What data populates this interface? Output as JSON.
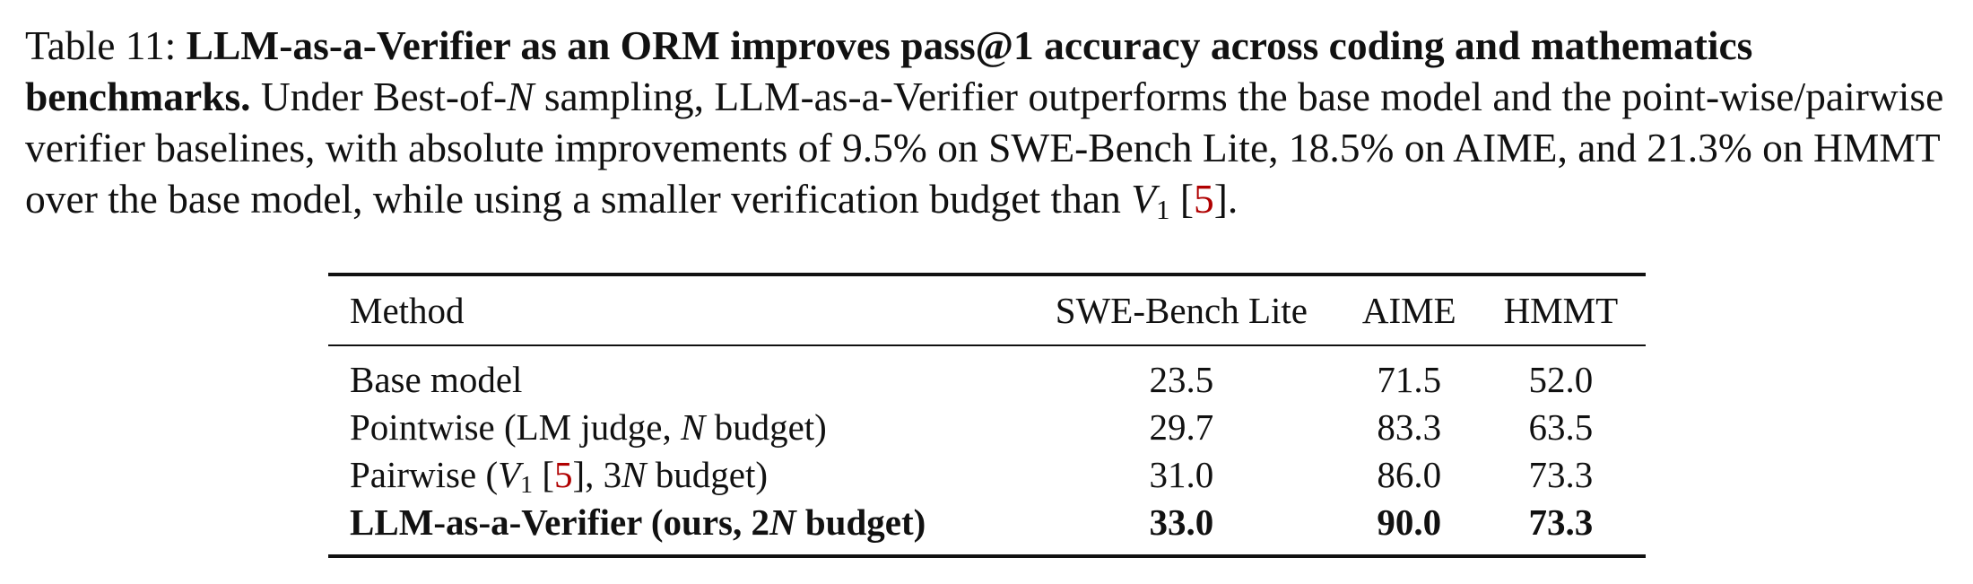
{
  "caption": {
    "label": "Table 11:",
    "title": "LLM-as-a-Verifier as an ORM improves pass@1 accuracy across coding and mathematics benchmarks.",
    "text_1": "Under Best-of-",
    "N": "N",
    "text_2": "sampling, LLM-as-a-Verifier outperforms the base model and the point-wise/pairwise verifier baselines, with absolute improvements of",
    "pct_swe": "9.5%",
    "text_3": "on SWE-Bench Lite,",
    "pct_aime": "18.5%",
    "text_4": "on AIME, and",
    "pct_hmmt": "21.3%",
    "text_5": "on HMMT over the base model, while using a smaller verification budget than",
    "V": "V",
    "V_sub": "1",
    "cite_open": "[",
    "cite_num": "5",
    "cite_close": "]."
  },
  "table": {
    "headers": {
      "method": "Method",
      "swe": "SWE-Bench Lite",
      "aime": "AIME",
      "hmmt": "HMMT"
    },
    "rows": [
      {
        "method_plain": "Base model",
        "swe": "23.5",
        "aime": "71.5",
        "hmmt": "52.0"
      },
      {
        "method_prefix": "Pointwise (LM judge, ",
        "method_N": "N",
        "method_suffix": " budget)",
        "swe": "29.7",
        "aime": "83.3",
        "hmmt": "63.5"
      },
      {
        "method_prefix": "Pairwise (",
        "method_V": "V",
        "method_V_sub": "1",
        "method_cite_pre": " [",
        "method_cite": "5",
        "method_cite_post": "], ",
        "method_3": "3",
        "method_N": "N",
        "method_suffix": " budget)",
        "swe": "31.0",
        "aime": "86.0",
        "hmmt": "73.3"
      },
      {
        "method_prefix": "LLM-as-a-Verifier (ours, ",
        "method_2": "2",
        "method_N": "N",
        "method_suffix": " budget)",
        "swe": "33.0",
        "aime": "90.0",
        "hmmt": "73.3"
      }
    ]
  },
  "colors": {
    "text": "#111111",
    "citation": "#b00000"
  }
}
